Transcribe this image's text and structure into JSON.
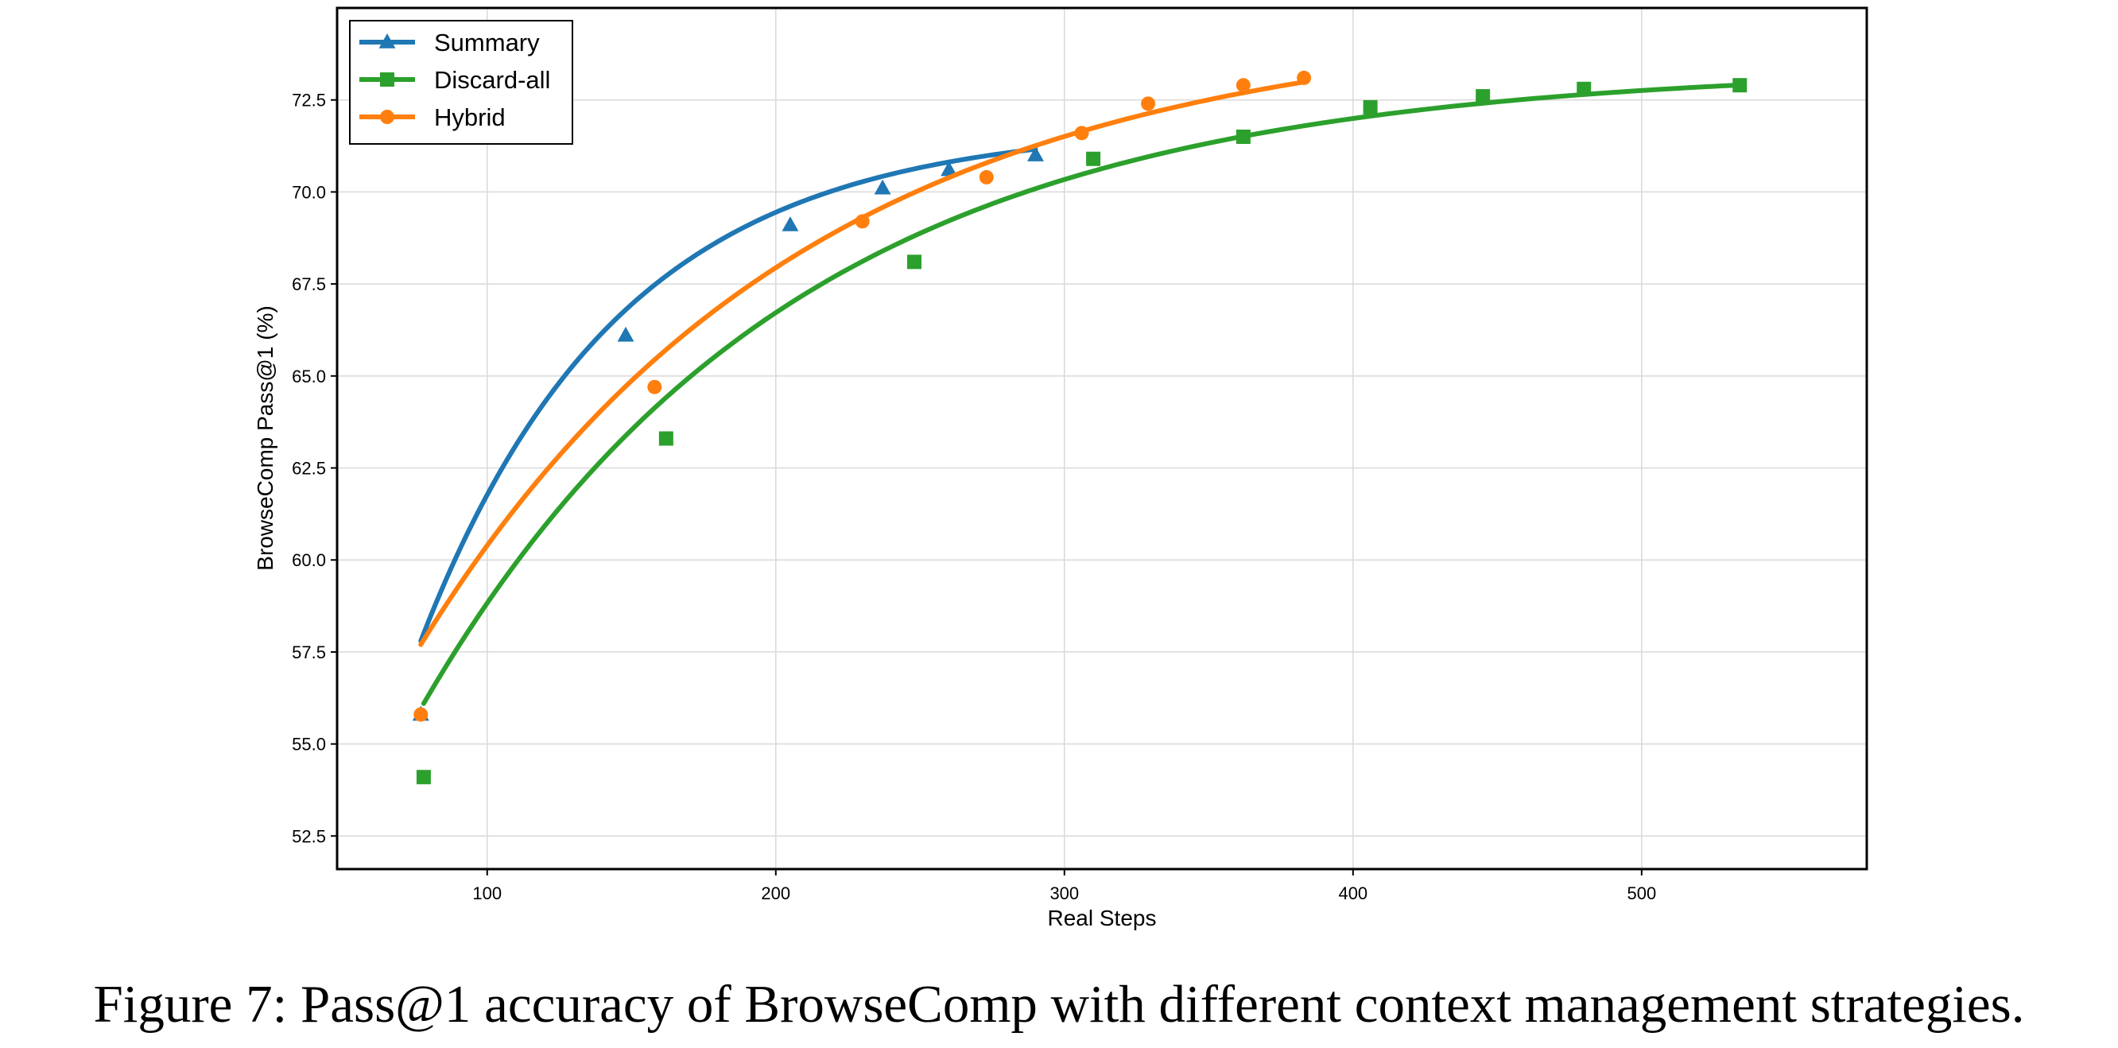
{
  "caption": "Figure 7: Pass@1 accuracy of BrowseComp with different context management strategies.",
  "chart_data": {
    "type": "line",
    "title": "",
    "xlabel": "Real Steps",
    "ylabel": "BrowseComp Pass@1 (%)",
    "xlim": [
      48,
      578
    ],
    "ylim": [
      51.6,
      75.0
    ],
    "xticks": [
      100,
      200,
      300,
      400,
      500
    ],
    "yticks": [
      52.5,
      55.0,
      57.5,
      60.0,
      62.5,
      65.0,
      67.5,
      70.0,
      72.5
    ],
    "ytick_labels": [
      "52.5",
      "55.0",
      "57.5",
      "60.0",
      "62.5",
      "65.0",
      "67.5",
      "70.0",
      "72.5"
    ],
    "grid": true,
    "legend_position": "top-left",
    "series": [
      {
        "name": "Summary",
        "color": "#1f77b4",
        "marker": "triangle",
        "points": [
          [
            77,
            55.8
          ],
          [
            148,
            66.1
          ],
          [
            205,
            69.1
          ],
          [
            237,
            70.1
          ],
          [
            260,
            70.6
          ],
          [
            290,
            71.0
          ]
        ],
        "fit": {
          "a": 71.8,
          "b": 14.0,
          "k": 0.0145,
          "x0": 77,
          "x1": 290
        }
      },
      {
        "name": "Discard-all",
        "color": "#2ca02c",
        "marker": "square",
        "points": [
          [
            78,
            54.1
          ],
          [
            162,
            63.3
          ],
          [
            248,
            68.1
          ],
          [
            310,
            70.9
          ],
          [
            362,
            71.5
          ],
          [
            406,
            72.3
          ],
          [
            445,
            72.6
          ],
          [
            480,
            72.8
          ],
          [
            534,
            72.9
          ]
        ],
        "fit": {
          "a": 73.4,
          "b": 17.3,
          "k": 0.0078,
          "x0": 78,
          "x1": 534
        }
      },
      {
        "name": "Hybrid",
        "color": "#ff7f0e",
        "marker": "circle",
        "points": [
          [
            77,
            55.8
          ],
          [
            158,
            64.7
          ],
          [
            230,
            69.2
          ],
          [
            273,
            70.4
          ],
          [
            306,
            71.6
          ],
          [
            329,
            72.4
          ],
          [
            362,
            72.9
          ],
          [
            383,
            73.1
          ]
        ],
        "fit": {
          "a": 74.7,
          "b": 17.0,
          "k": 0.0075,
          "x0": 77,
          "x1": 383
        }
      }
    ]
  }
}
